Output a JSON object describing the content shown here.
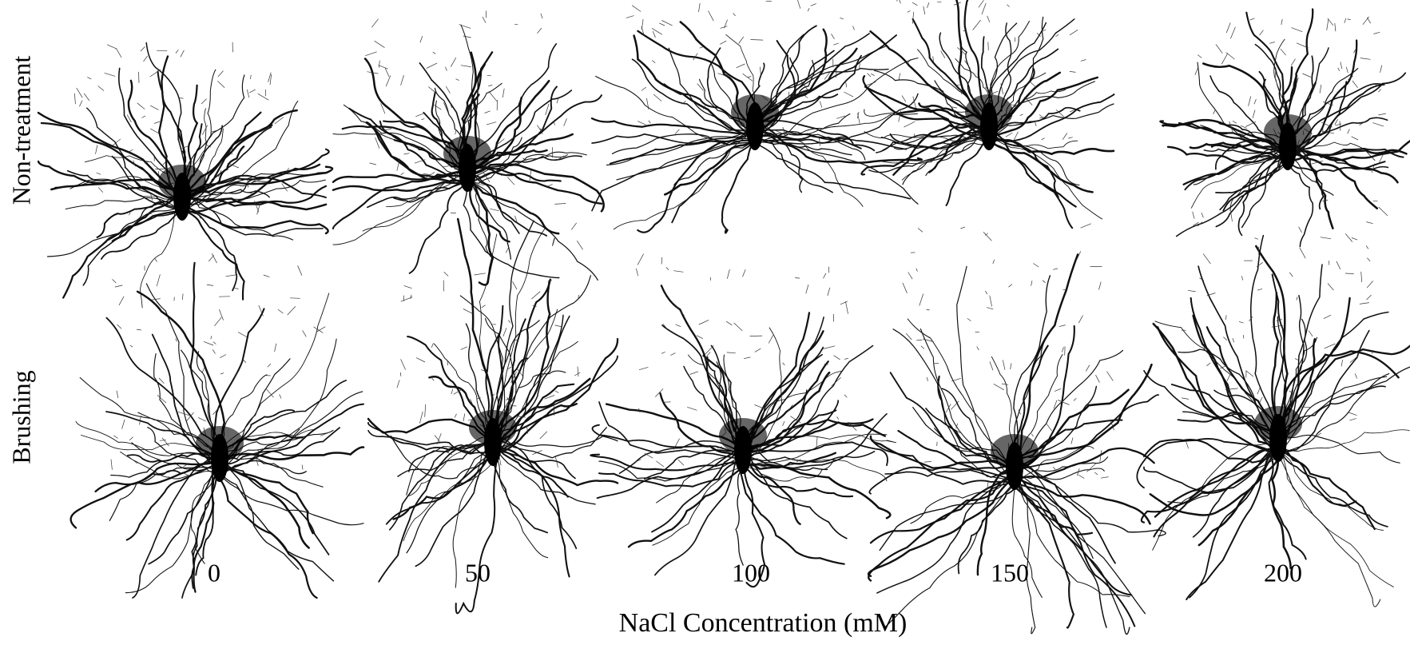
{
  "row_labels": [
    "Non-treatment",
    "Brushing"
  ],
  "column_labels": [
    "0",
    "50",
    "100",
    "150",
    "200"
  ],
  "x_axis_label": "NaCl Concentration (mM)"
}
